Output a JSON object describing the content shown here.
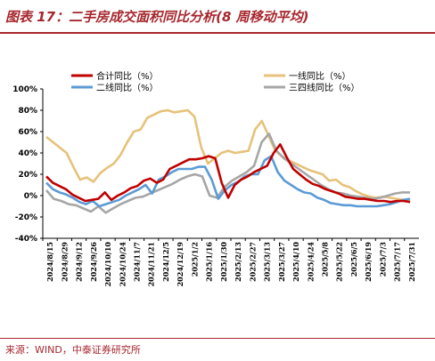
{
  "title": "图表 17：二手房成交面积同比分析(8 周移动平均)",
  "source": "来源：WIND，中泰证券研究所",
  "colors": {
    "total": "#c00000",
    "tier1": "#e6c27a",
    "tier2": "#5b9bd5",
    "tier34": "#a6a6a6",
    "accent": "#a6272d"
  },
  "chart_data": {
    "type": "line",
    "ylim": [
      -40,
      100
    ],
    "yticks": [
      "100%",
      "80%",
      "60%",
      "40%",
      "20%",
      "0%",
      "-20%",
      "-40%"
    ],
    "ytick_values": [
      100,
      80,
      60,
      40,
      20,
      0,
      -20,
      -40
    ],
    "grid": false,
    "legend_position": "top",
    "x_tick_labels": [
      "2024/8/15",
      "2024/8/29",
      "2024/9/12",
      "2024/9/26",
      "2024/10/10",
      "2024/10/24",
      "2024/11/7",
      "2024/11/21",
      "2024/12/5",
      "2024/12/19",
      "2025/1/2",
      "2025/1/16",
      "2025/1/30",
      "2025/2/13",
      "2025/2/27",
      "2025/3/13",
      "2025/3/27",
      "2025/4/10",
      "2025/4/24",
      "2025/5/8",
      "2025/5/22",
      "2025/6/5",
      "2025/6/19",
      "2025/7/3",
      "2025/7/17",
      "2025/7/31"
    ],
    "series": [
      {
        "name": "合计同比（%）",
        "key": "total",
        "values": [
          18,
          12,
          9,
          6,
          1,
          -2,
          -5,
          -4,
          -3,
          3,
          -4,
          0,
          3,
          7,
          9,
          14,
          16,
          12,
          15,
          25,
          28,
          31,
          34,
          34,
          35,
          37,
          35,
          12,
          -2,
          10,
          15,
          18,
          22,
          25,
          28,
          40,
          48,
          36,
          25,
          20,
          15,
          11,
          9,
          6,
          4,
          2,
          -1,
          -2,
          -3,
          -3,
          -4,
          -5,
          -5,
          -6,
          -5,
          -5,
          -6
        ]
      },
      {
        "name": "一线同比（%）",
        "key": "tier1",
        "values": [
          55,
          50,
          45,
          40,
          27,
          15,
          17,
          13,
          21,
          26,
          30,
          38,
          50,
          60,
          62,
          73,
          76,
          79,
          80,
          78,
          79,
          80,
          74,
          45,
          30,
          35,
          40,
          42,
          40,
          41,
          42,
          62,
          70,
          56,
          42,
          37,
          33,
          30,
          27,
          24,
          22,
          20,
          14,
          15,
          10,
          8,
          4,
          1,
          -1,
          -2,
          -1,
          -2,
          -3,
          -4,
          -4
        ]
      },
      {
        "name": "二线同比（%）",
        "key": "tier2",
        "values": [
          12,
          6,
          3,
          1,
          -2,
          -6,
          -8,
          -5,
          -10,
          -8,
          -6,
          -4,
          0,
          3,
          6,
          10,
          2,
          15,
          18,
          22,
          25,
          25,
          25,
          27,
          27,
          15,
          -3,
          5,
          10,
          13,
          18,
          20,
          20,
          33,
          37,
          22,
          14,
          10,
          6,
          3,
          2,
          -2,
          -4,
          -7,
          -8,
          -9,
          -9,
          -10,
          -10,
          -10,
          -10,
          -9,
          -8,
          -6,
          -4,
          -3
        ]
      },
      {
        "name": "三四线同比（%）",
        "key": "tier34",
        "values": [
          5,
          -3,
          -5,
          -8,
          -9,
          -12,
          -15,
          -10,
          -16,
          -12,
          -8,
          -5,
          -2,
          -1,
          2,
          5,
          8,
          11,
          15,
          18,
          20,
          18,
          0,
          -2,
          8,
          14,
          18,
          22,
          28,
          50,
          58,
          42,
          35,
          30,
          25,
          20,
          15,
          10,
          6,
          3,
          2,
          0,
          -1,
          -2,
          -3,
          -2,
          0,
          2,
          3,
          3
        ]
      }
    ]
  }
}
